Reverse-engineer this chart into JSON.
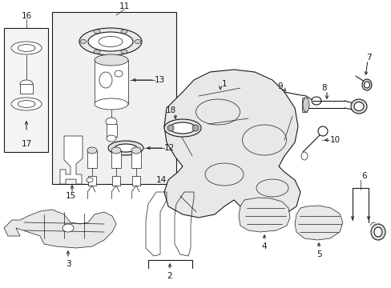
{
  "bg_color": "#ffffff",
  "line_color": "#1a1a1a",
  "fig_width": 4.89,
  "fig_height": 3.6
}
